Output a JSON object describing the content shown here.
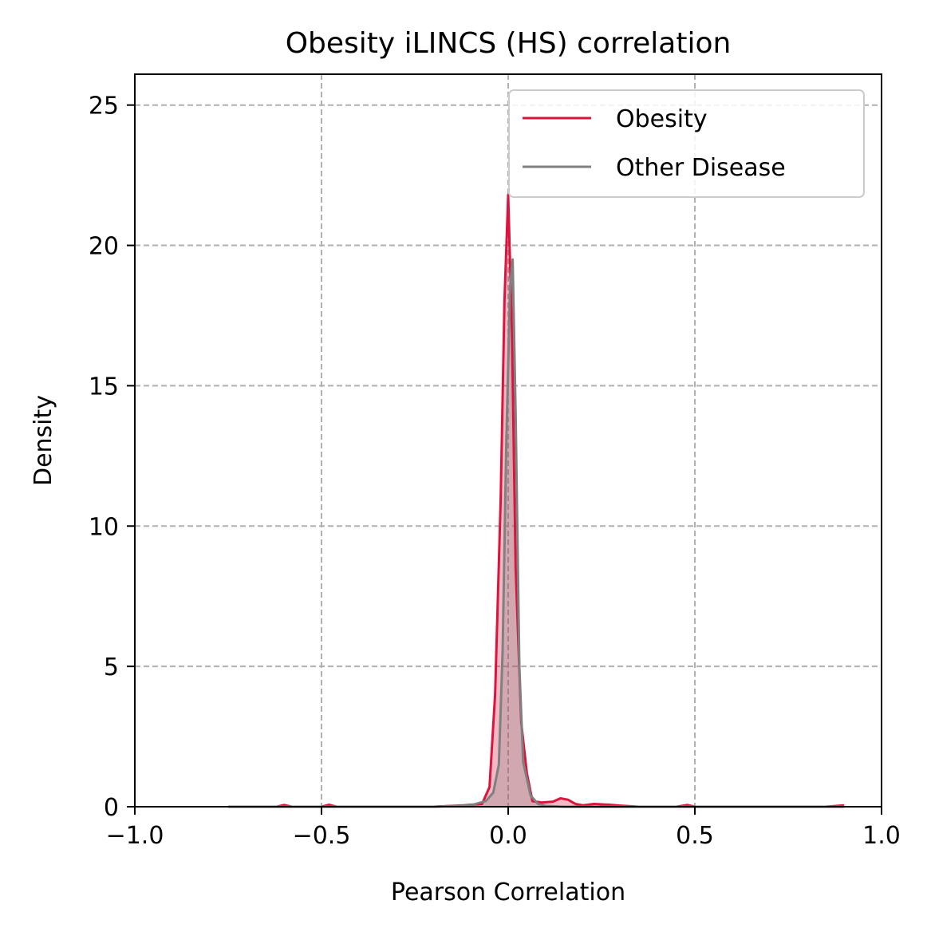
{
  "chart_data": {
    "type": "area",
    "title": "Obesity iLINCS (HS) correlation",
    "xlabel": "Pearson Correlation",
    "ylabel": "Density",
    "xlim": [
      -1.0,
      1.0
    ],
    "ylim": [
      0,
      26.1
    ],
    "xticks": [
      -1.0,
      -0.5,
      0.0,
      0.5,
      1.0
    ],
    "xtick_labels": [
      "−1.0",
      "−0.5",
      "0.0",
      "0.5",
      "1.0"
    ],
    "yticks": [
      0,
      5,
      10,
      15,
      20,
      25
    ],
    "ytick_labels": [
      "0",
      "5",
      "10",
      "15",
      "20",
      "25"
    ],
    "grid": true,
    "legend_position": "top-right",
    "series": [
      {
        "name": "Obesity",
        "color": "#dc143c",
        "fill": true,
        "x": [
          -0.75,
          -0.62,
          -0.6,
          -0.58,
          -0.5,
          -0.48,
          -0.46,
          -0.2,
          -0.12,
          -0.07,
          -0.05,
          -0.035,
          -0.02,
          -0.01,
          0.0,
          0.01,
          0.02,
          0.035,
          0.05,
          0.065,
          0.09,
          0.12,
          0.14,
          0.16,
          0.18,
          0.2,
          0.23,
          0.27,
          0.3,
          0.35,
          0.45,
          0.48,
          0.5,
          0.55,
          0.85,
          0.9
        ],
        "y": [
          0.0,
          0.0,
          0.06,
          0.0,
          0.0,
          0.07,
          0.0,
          0.0,
          0.05,
          0.1,
          0.7,
          4.0,
          11.0,
          18.0,
          21.8,
          17.0,
          8.5,
          3.0,
          1.2,
          0.2,
          0.15,
          0.18,
          0.3,
          0.25,
          0.1,
          0.05,
          0.1,
          0.07,
          0.04,
          0.0,
          0.0,
          0.06,
          0.0,
          0.0,
          0.0,
          0.05
        ]
      },
      {
        "name": "Other Disease",
        "color": "#808080",
        "fill": true,
        "x": [
          -0.75,
          -0.2,
          -0.1,
          -0.06,
          -0.04,
          -0.025,
          -0.015,
          -0.005,
          0.005,
          0.012,
          0.02,
          0.03,
          0.04,
          0.06,
          0.08,
          0.1,
          0.15,
          0.3,
          0.9
        ],
        "y": [
          0.0,
          0.0,
          0.05,
          0.2,
          0.5,
          1.5,
          5.5,
          13.0,
          18.5,
          19.5,
          14.0,
          5.0,
          1.6,
          0.4,
          0.1,
          0.03,
          0.0,
          0.0,
          0.0
        ]
      }
    ]
  }
}
